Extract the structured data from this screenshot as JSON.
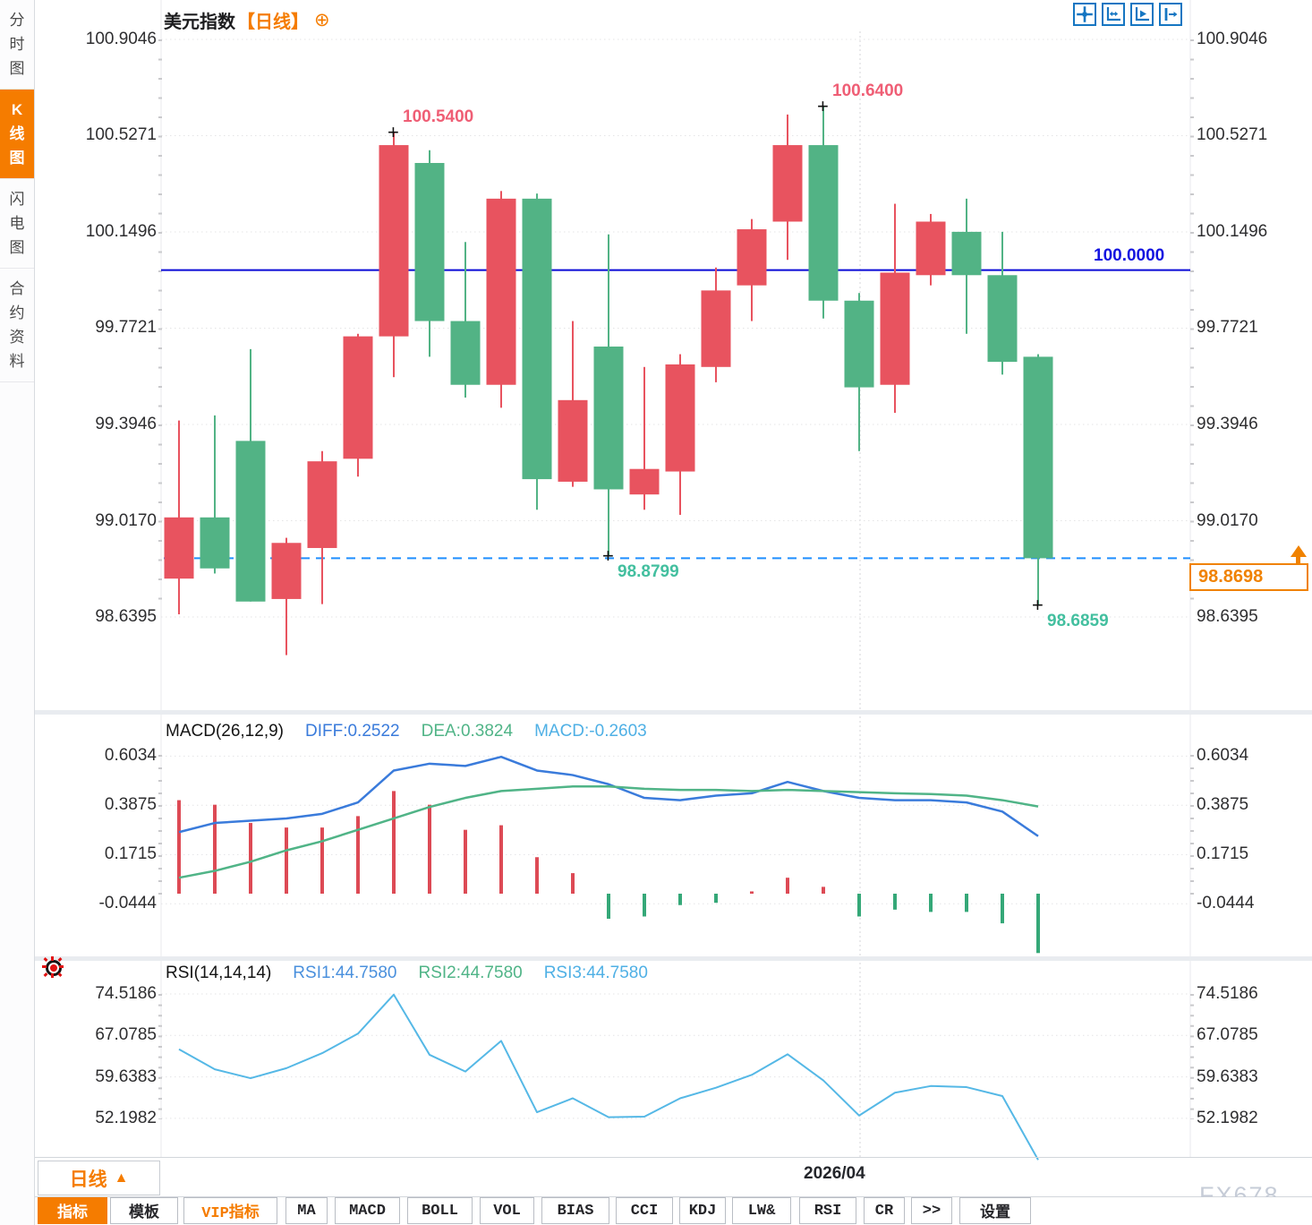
{
  "header": {
    "title": "美元指数",
    "period_tag": "【日线】",
    "plus_icon": "⊕",
    "icons": [
      "pan-icon",
      "axis-zoom-icon",
      "axis-play-icon",
      "shift-right-icon"
    ]
  },
  "sidebar": {
    "tabs": [
      {
        "label": "分时图",
        "active": false
      },
      {
        "label": "K线图",
        "active": true
      },
      {
        "label": "闪电图",
        "active": false
      },
      {
        "label": "合约资料",
        "active": false
      }
    ]
  },
  "colors": {
    "up": "#e8535f",
    "down": "#52b385",
    "ref_line": "#0a0ad6",
    "ref_label": "#1414e0",
    "dashed_line": "#1f8fff",
    "accent": "#f57c00",
    "price_tag": "#f08200",
    "ann_high": "#ef5e75",
    "ann_low": "#43bf9f",
    "diff_line": "#3a7bdb",
    "dea_line": "#50b487",
    "rsi_line": "#55b8e6",
    "hist_pos": "#dd4a55",
    "hist_neg": "#35a878",
    "grid": "#e4e4e6"
  },
  "chart_data": [
    {
      "type": "candlestick",
      "title": "美元指数 日线",
      "y_tick_labels": [
        "100.9046",
        "100.5271",
        "100.1496",
        "99.7721",
        "99.3946",
        "99.0170",
        "98.6395"
      ],
      "reference_line": {
        "value": 100.0,
        "label": "100.0000"
      },
      "last_price": {
        "value": 98.8698,
        "label": "98.8698"
      },
      "annotations": [
        {
          "text": "100.5400",
          "candle_index": 6,
          "price": 100.54,
          "kind": "high"
        },
        {
          "text": "100.6400",
          "candle_index": 18,
          "price": 100.64,
          "kind": "high"
        },
        {
          "text": "98.8799",
          "candle_index": 12,
          "price": 98.8799,
          "kind": "low"
        },
        {
          "text": "98.6859",
          "candle_index": 24,
          "price": 98.6859,
          "kind": "low"
        }
      ],
      "x_axis": {
        "date_label": "2026/04",
        "month_separator_index": 19
      },
      "candles_ohlc": [
        [
          98.79,
          99.41,
          98.65,
          99.03
        ],
        [
          99.03,
          99.43,
          98.81,
          98.83
        ],
        [
          99.33,
          99.69,
          98.7,
          98.7
        ],
        [
          98.71,
          98.95,
          98.49,
          98.93
        ],
        [
          98.91,
          99.29,
          98.69,
          99.25
        ],
        [
          99.26,
          99.75,
          99.19,
          99.74
        ],
        [
          99.74,
          100.54,
          99.58,
          100.49
        ],
        [
          100.42,
          100.47,
          99.66,
          99.8
        ],
        [
          99.8,
          100.11,
          99.5,
          99.55
        ],
        [
          99.55,
          100.31,
          99.46,
          100.28
        ],
        [
          100.28,
          100.3,
          99.06,
          99.18
        ],
        [
          99.17,
          99.8,
          99.15,
          99.49
        ],
        [
          99.7,
          100.14,
          98.8799,
          99.14
        ],
        [
          99.12,
          99.62,
          99.06,
          99.22
        ],
        [
          99.21,
          99.67,
          99.04,
          99.63
        ],
        [
          99.62,
          100.01,
          99.56,
          99.92
        ],
        [
          99.94,
          100.2,
          99.8,
          100.16
        ],
        [
          100.19,
          100.61,
          100.04,
          100.49
        ],
        [
          100.49,
          100.64,
          99.81,
          99.88
        ],
        [
          99.88,
          99.91,
          99.29,
          99.54
        ],
        [
          99.55,
          100.26,
          99.44,
          99.99
        ],
        [
          99.98,
          100.22,
          99.94,
          100.19
        ],
        [
          100.15,
          100.28,
          99.75,
          99.98
        ],
        [
          99.98,
          100.15,
          99.59,
          99.64
        ],
        [
          99.66,
          99.67,
          98.6859,
          98.8698
        ]
      ]
    },
    {
      "type": "bar",
      "name": "MACD",
      "params_label": "MACD(26,12,9)",
      "legend": [
        {
          "label": "DIFF:0.2522",
          "color": "#3a7bdb"
        },
        {
          "label": "DEA:0.3824",
          "color": "#50b487"
        },
        {
          "label": "MACD:-0.2603",
          "color": "#4fb0e5"
        }
      ],
      "y_tick_labels": [
        "0.6034",
        "0.3875",
        "0.1715",
        "-0.0444"
      ],
      "histogram": [
        0.41,
        0.39,
        0.31,
        0.29,
        0.29,
        0.34,
        0.45,
        0.39,
        0.28,
        0.3,
        0.16,
        0.09,
        -0.11,
        -0.1,
        -0.05,
        -0.04,
        0.01,
        0.07,
        0.03,
        -0.1,
        -0.07,
        -0.08,
        -0.08,
        -0.13,
        -0.2603
      ],
      "series": [
        {
          "name": "DIFF",
          "values": [
            0.27,
            0.31,
            0.32,
            0.33,
            0.35,
            0.4,
            0.54,
            0.57,
            0.56,
            0.6,
            0.54,
            0.52,
            0.48,
            0.42,
            0.41,
            0.43,
            0.44,
            0.49,
            0.45,
            0.42,
            0.41,
            0.41,
            0.4,
            0.36,
            0.2522
          ]
        },
        {
          "name": "DEA",
          "values": [
            0.07,
            0.1,
            0.14,
            0.19,
            0.23,
            0.28,
            0.33,
            0.38,
            0.42,
            0.45,
            0.46,
            0.47,
            0.47,
            0.46,
            0.455,
            0.455,
            0.45,
            0.455,
            0.45,
            0.445,
            0.44,
            0.437,
            0.43,
            0.41,
            0.3824
          ]
        }
      ]
    },
    {
      "type": "line",
      "name": "RSI",
      "params_label": "RSI(14,14,14)",
      "legend": [
        {
          "label": "RSI1:44.7580",
          "color": "#4a90dd"
        },
        {
          "label": "RSI2:44.7580",
          "color": "#50b487"
        },
        {
          "label": "RSI3:44.7580",
          "color": "#4fb0e5"
        }
      ],
      "y_tick_labels": [
        "74.5186",
        "67.0785",
        "59.6383",
        "52.1982"
      ],
      "values": [
        64.6,
        61.0,
        59.4,
        61.2,
        63.9,
        67.4,
        74.4,
        63.6,
        60.6,
        66.1,
        53.3,
        55.8,
        52.4,
        52.5,
        55.8,
        57.7,
        60.0,
        63.7,
        59.0,
        52.7,
        56.8,
        58.0,
        57.8,
        56.2,
        44.758
      ]
    }
  ],
  "footer": {
    "period_label": "日线",
    "period_arrow": "▲",
    "watermark": "FX678",
    "tabs": [
      {
        "label": "指标",
        "active": true
      },
      {
        "label": "模板"
      },
      {
        "label": "VIP指标",
        "vip": true
      },
      {
        "label": "MA"
      },
      {
        "label": "MACD"
      },
      {
        "label": "BOLL"
      },
      {
        "label": "VOL"
      },
      {
        "label": "BIAS"
      },
      {
        "label": "CCI"
      },
      {
        "label": "KDJ"
      },
      {
        "label": "LW&"
      },
      {
        "label": "RSI"
      },
      {
        "label": "CR"
      },
      {
        "label": ">>"
      },
      {
        "label": "设置"
      }
    ]
  }
}
